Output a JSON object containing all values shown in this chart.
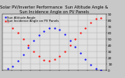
{
  "title": "Solar PV/Inverter Performance  Sun Altitude Angle & Sun Incidence Angle on PV Panels",
  "blue_label": "Sun Altitude Angle",
  "red_label": "Sun Incidence Angle on PV Panels",
  "background_color": "#c8c8c8",
  "plot_bg_color": "#e0e0e0",
  "ylim": [
    0,
    90
  ],
  "blue_x": [
    0.05,
    0.1,
    0.15,
    0.2,
    0.25,
    0.3,
    0.35,
    0.4,
    0.45,
    0.5,
    0.55,
    0.6,
    0.65,
    0.7,
    0.75,
    0.8,
    0.85,
    0.9,
    0.95
  ],
  "blue_y": [
    2,
    6,
    15,
    25,
    36,
    47,
    56,
    63,
    67,
    68,
    65,
    57,
    48,
    38,
    27,
    17,
    9,
    3,
    0
  ],
  "red_x": [
    0.05,
    0.1,
    0.15,
    0.2,
    0.25,
    0.3,
    0.35,
    0.4,
    0.45,
    0.5,
    0.55,
    0.6,
    0.65,
    0.7,
    0.75,
    0.8,
    0.85,
    0.9,
    0.95
  ],
  "red_y": [
    78,
    68,
    60,
    50,
    40,
    30,
    22,
    16,
    15,
    17,
    22,
    30,
    40,
    50,
    60,
    68,
    76,
    82,
    84
  ],
  "grid_color": "#aaaaaa",
  "yticks": [
    0,
    10,
    20,
    30,
    40,
    50,
    60,
    70,
    80,
    90
  ],
  "ytick_labels": [
    "0",
    "10",
    "20",
    "30",
    "40",
    "50",
    "60",
    "70",
    "80",
    "90"
  ],
  "title_fontsize": 3.8,
  "tick_fontsize": 3.2,
  "legend_fontsize": 2.8,
  "dot_size": 1.2
}
